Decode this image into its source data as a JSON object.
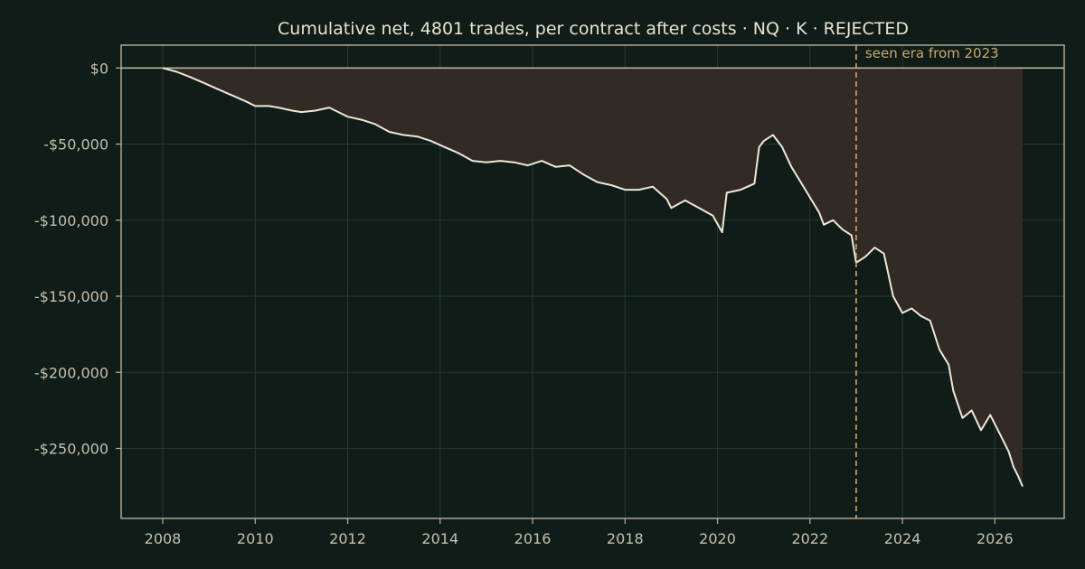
{
  "chart_data": {
    "type": "area",
    "title": "Cumulative net, 4801 trades, per contract after costs  ·  NQ · K · REJECTED",
    "xlabel": "",
    "ylabel": "",
    "xlim": [
      2007.1,
      2027.5
    ],
    "ylim": [
      -296000,
      15000
    ],
    "x_ticks": [
      2008,
      2010,
      2012,
      2014,
      2016,
      2018,
      2020,
      2022,
      2024,
      2026
    ],
    "x_tick_labels": [
      "2008",
      "2010",
      "2012",
      "2014",
      "2016",
      "2018",
      "2020",
      "2022",
      "2024",
      "2026"
    ],
    "y_ticks": [
      0,
      -50000,
      -100000,
      -150000,
      -200000,
      -250000
    ],
    "y_tick_labels": [
      "$0",
      "-$50,000",
      "-$100,000",
      "-$150,000",
      "-$200,000",
      "-$250,000"
    ],
    "grid": true,
    "fill_to_zero": true,
    "annotation": {
      "x": 2023.0,
      "label": "seen era from 2023"
    },
    "colors": {
      "background": "#0f1c17",
      "line": "#efe8d6",
      "fill": "#312a25",
      "frame": "#b9b29e",
      "grid": "#2a3832",
      "annotation": "#c8a96a"
    },
    "series": [
      {
        "x": [
          2008.0,
          2008.3,
          2008.6,
          2008.9,
          2009.2,
          2009.5,
          2009.8,
          2010.0,
          2010.3,
          2010.5,
          2010.8,
          2011.0,
          2011.3,
          2011.6,
          2011.8,
          2012.0,
          2012.3,
          2012.6,
          2012.9,
          2013.2,
          2013.5,
          2013.8,
          2014.1,
          2014.4,
          2014.7,
          2015.0,
          2015.3,
          2015.6,
          2015.9,
          2016.2,
          2016.5,
          2016.8,
          2017.1,
          2017.4,
          2017.7,
          2018.0,
          2018.3,
          2018.6,
          2018.9,
          2019.0,
          2019.3,
          2019.6,
          2019.9,
          2020.1,
          2020.2,
          2020.5,
          2020.8,
          2020.9,
          2021.0,
          2021.2,
          2021.4,
          2021.6,
          2021.8,
          2022.0,
          2022.2,
          2022.3,
          2022.5,
          2022.7,
          2022.9,
          2023.0,
          2023.2,
          2023.4,
          2023.6,
          2023.8,
          2024.0,
          2024.2,
          2024.4,
          2024.6,
          2024.8,
          2025.0,
          2025.1,
          2025.3,
          2025.5,
          2025.7,
          2025.9,
          2026.1,
          2026.3,
          2026.4,
          2026.5,
          2026.6
        ],
        "values": [
          0,
          -2500,
          -6000,
          -10000,
          -14000,
          -18000,
          -22000,
          -25000,
          -25000,
          -26000,
          -28000,
          -29000,
          -28000,
          -26000,
          -29000,
          -32000,
          -34000,
          -37000,
          -42000,
          -44000,
          -45000,
          -48000,
          -52000,
          -56000,
          -61000,
          -62000,
          -61000,
          -62000,
          -64000,
          -61000,
          -65000,
          -64000,
          -70000,
          -75000,
          -77000,
          -80000,
          -80000,
          -78000,
          -86000,
          -92000,
          -87000,
          -92000,
          -97000,
          -108000,
          -82000,
          -80000,
          -76000,
          -52000,
          -48000,
          -44000,
          -52000,
          -65000,
          -75000,
          -85000,
          -95000,
          -103000,
          -100000,
          -106000,
          -110000,
          -128000,
          -124000,
          -118000,
          -122000,
          -150000,
          -161000,
          -158000,
          -163000,
          -166000,
          -185000,
          -195000,
          -212000,
          -230000,
          -225000,
          -238000,
          -228000,
          -240000,
          -252000,
          -262000,
          -268000,
          -275000
        ]
      }
    ]
  }
}
